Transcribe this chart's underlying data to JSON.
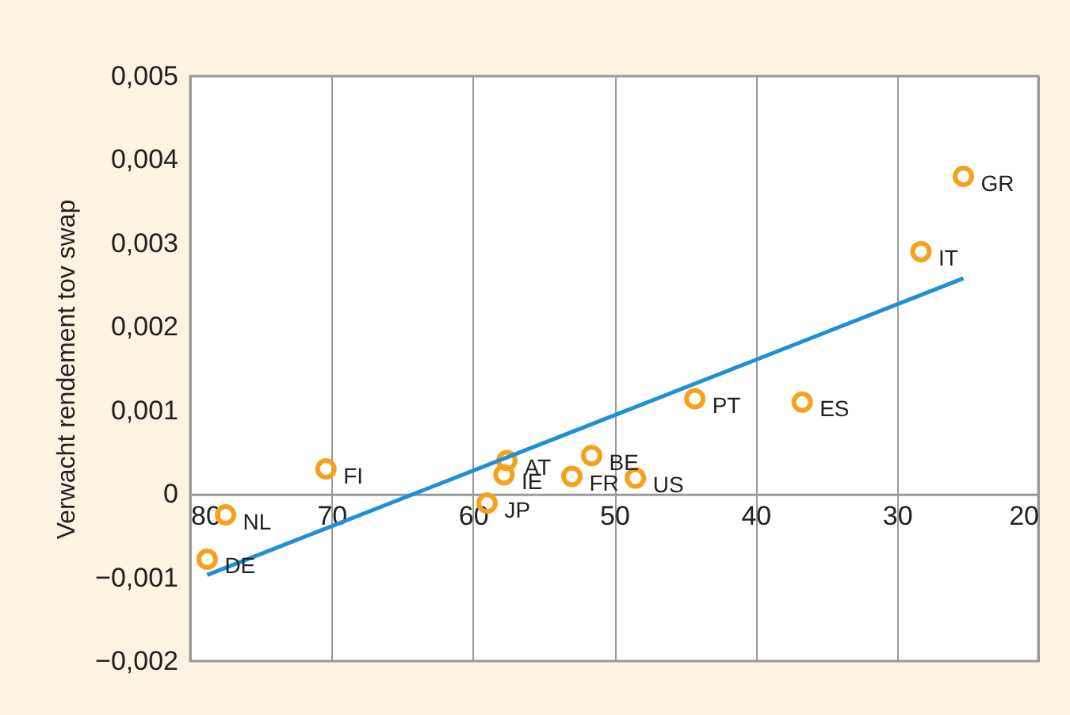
{
  "chart_data": {
    "type": "scatter",
    "ylabel": "Verwacht rendement tov swap",
    "x": [
      25.3,
      28.3,
      36.7,
      44.3,
      48.5,
      51.6,
      53.0,
      57.6,
      57.8,
      59.0,
      70.4,
      77.5,
      78.8
    ],
    "series": [
      {
        "type": "scatter",
        "color": "#f5a11c",
        "marker": "circle",
        "values": [
          0.0038,
          0.0029,
          0.0011,
          0.00114,
          0.00019,
          0.00046,
          0.00021,
          0.0004,
          0.00023,
          -0.00011,
          0.0003,
          -0.00025,
          -0.00078
        ]
      },
      {
        "type": "line",
        "color": "#1f8fd6",
        "line_style": "solid",
        "marker": "none",
        "x": [
          78.8,
          25.3
        ],
        "values": [
          -0.00097,
          0.00258
        ]
      }
    ],
    "annotations": [
      {
        "text": "GR",
        "x": 25.3,
        "y": 0.0038
      },
      {
        "text": "IT",
        "x": 28.3,
        "y": 0.0029
      },
      {
        "text": "ES",
        "x": 36.7,
        "y": 0.0011
      },
      {
        "text": "PT",
        "x": 44.3,
        "y": 0.00114
      },
      {
        "text": "US",
        "x": 48.5,
        "y": 0.00019
      },
      {
        "text": "BE",
        "x": 51.6,
        "y": 0.00046
      },
      {
        "text": "FR",
        "x": 53.0,
        "y": 0.00021
      },
      {
        "text": "AT",
        "x": 57.6,
        "y": 0.0004
      },
      {
        "text": "IE",
        "x": 57.8,
        "y": 0.00023
      },
      {
        "text": "JP",
        "x": 59.0,
        "y": -0.00011
      },
      {
        "text": "FI",
        "x": 70.4,
        "y": 0.0003
      },
      {
        "text": "NL",
        "x": 77.5,
        "y": -0.00025
      },
      {
        "text": "DE",
        "x": 78.8,
        "y": -0.00078
      }
    ],
    "xlim": [
      80,
      20
    ],
    "xticks": [
      80,
      70,
      60,
      50,
      40,
      30,
      20
    ],
    "ylim": [
      -0.002,
      0.005
    ],
    "yticks": [
      {
        "value": -0.002,
        "label": "−0,002"
      },
      {
        "value": -0.001,
        "label": "−0,001"
      },
      {
        "value": 0,
        "label": "0"
      },
      {
        "value": 0.001,
        "label": "0,001"
      },
      {
        "value": 0.002,
        "label": "0,002"
      },
      {
        "value": 0.003,
        "label": "0,003"
      },
      {
        "value": 0.004,
        "label": "0,004"
      },
      {
        "value": 0.005,
        "label": "0,005"
      }
    ],
    "grid": "x"
  }
}
